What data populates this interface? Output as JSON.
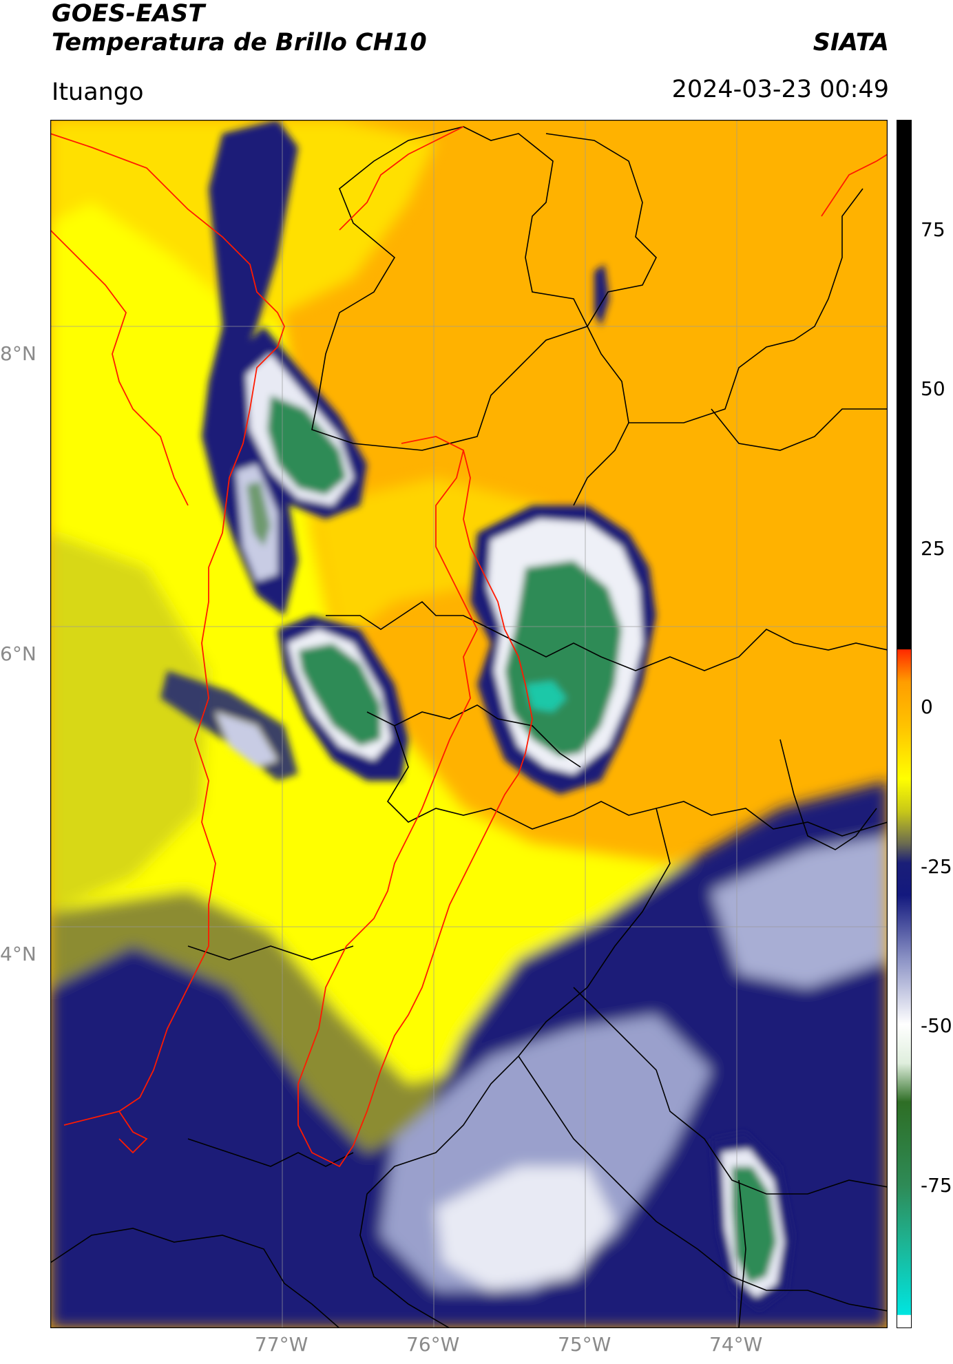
{
  "header": {
    "line1": "GOES-EAST",
    "line2": "Temperatura de Brillo CH10",
    "organization": "SIATA",
    "place": "Ituango",
    "timestamp": "2024-03-23 00:49"
  },
  "axes": {
    "lat_ticks": [
      "8°N",
      "6°N",
      "4°N"
    ],
    "lon_ticks": [
      "77°W",
      "76°W",
      "75°W",
      "74°W"
    ]
  },
  "colorbar": {
    "ticks": [
      "75",
      "50",
      "25",
      "0",
      "-25",
      "-50",
      "-75"
    ],
    "stops": [
      {
        "v": -97,
        "c": "#ffffff"
      },
      {
        "v": -95,
        "c": "#ffffff"
      },
      {
        "v": -94.9,
        "c": "#00e5e0"
      },
      {
        "v": -83,
        "c": "#1fb08e"
      },
      {
        "v": -75,
        "c": "#2e8b57"
      },
      {
        "v": -62,
        "c": "#2e6e25"
      },
      {
        "v": -56,
        "c": "#dfeedd"
      },
      {
        "v": -50,
        "c": "#ffffff"
      },
      {
        "v": -40,
        "c": "#8d94c6"
      },
      {
        "v": -30,
        "c": "#13197e"
      },
      {
        "v": -25,
        "c": "#1a1e78"
      },
      {
        "v": -22,
        "c": "#6b6b50"
      },
      {
        "v": -17,
        "c": "#c8c818"
      },
      {
        "v": -12,
        "c": "#ffff00"
      },
      {
        "v": -4,
        "c": "#ffc400"
      },
      {
        "v": 3,
        "c": "#ff9d00"
      },
      {
        "v": 8,
        "c": "#ff2a00"
      },
      {
        "v": 8.1,
        "c": "#000000"
      },
      {
        "v": 90,
        "c": "#000000"
      }
    ],
    "colors": {
      "cold_core": "#2e8b57",
      "anvil": "#1a1e78",
      "moderate": "#ffff00",
      "warm": "#ffb000",
      "boundary_red": "#ff0000",
      "boundary_black": "#000000"
    }
  }
}
